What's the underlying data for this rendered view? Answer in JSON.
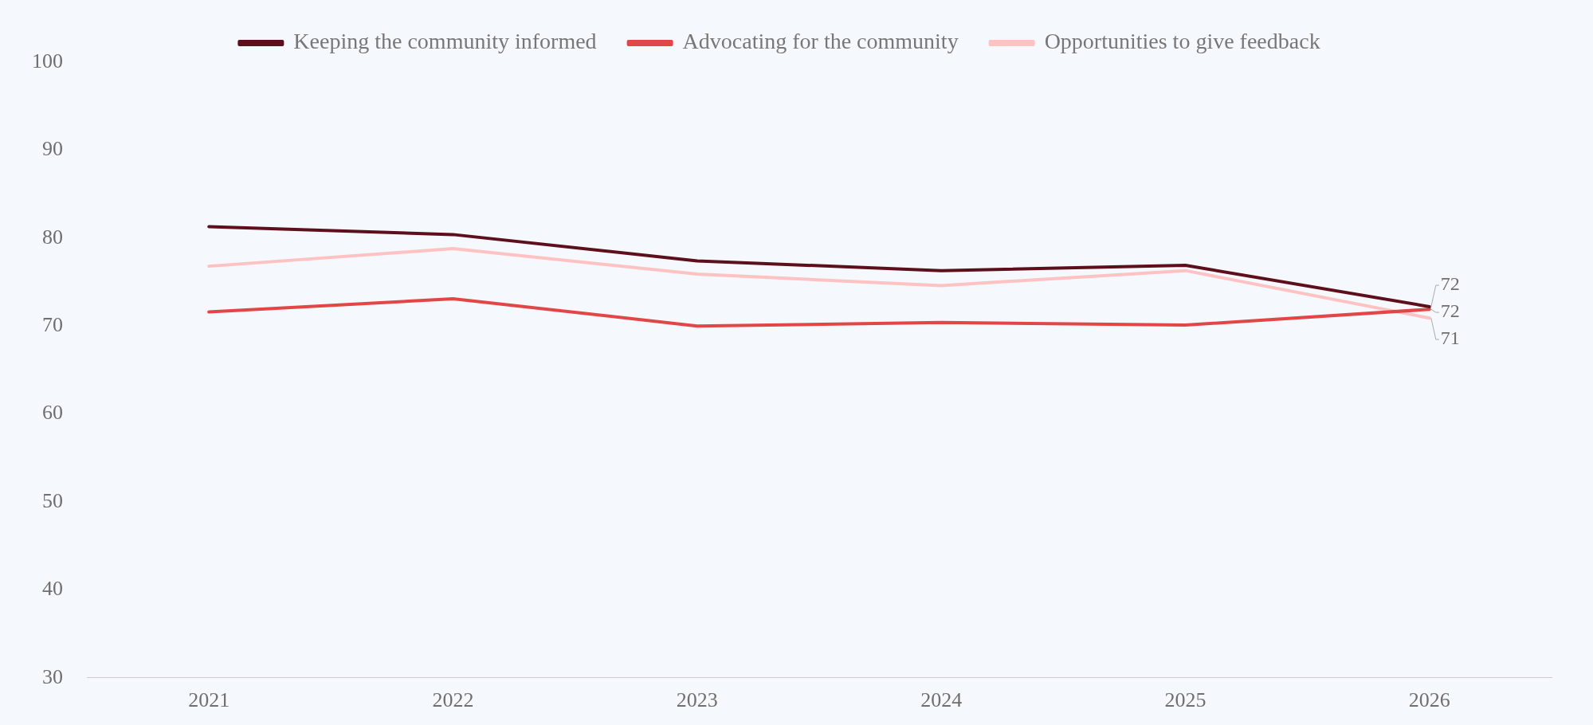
{
  "chart_data": {
    "type": "line",
    "categories": [
      "2021",
      "2022",
      "2023",
      "2024",
      "2025",
      "2026"
    ],
    "series": [
      {
        "name": "Keeping the community informed",
        "color": "#5e0f1c",
        "values": [
          81.3,
          80.4,
          77.4,
          76.3,
          76.9,
          72.2
        ],
        "value_labels": [
          null,
          null,
          null,
          null,
          null,
          "72"
        ]
      },
      {
        "name": "Advocating for the community",
        "color": "#e24646",
        "values": [
          71.6,
          73.1,
          70.0,
          70.4,
          70.1,
          71.9
        ],
        "value_labels": [
          null,
          null,
          null,
          null,
          null,
          "72"
        ]
      },
      {
        "name": "Opportunities to give feedback",
        "color": "#ffc2c2",
        "values": [
          76.8,
          78.8,
          75.9,
          74.6,
          76.3,
          70.9
        ],
        "value_labels": [
          null,
          null,
          null,
          null,
          null,
          "71"
        ]
      }
    ],
    "ylim": [
      30,
      100
    ],
    "yticks": [
      30,
      40,
      50,
      60,
      70,
      80,
      90,
      100
    ],
    "grid": false,
    "legend": "top",
    "marker": "none",
    "line_style": "solid"
  }
}
